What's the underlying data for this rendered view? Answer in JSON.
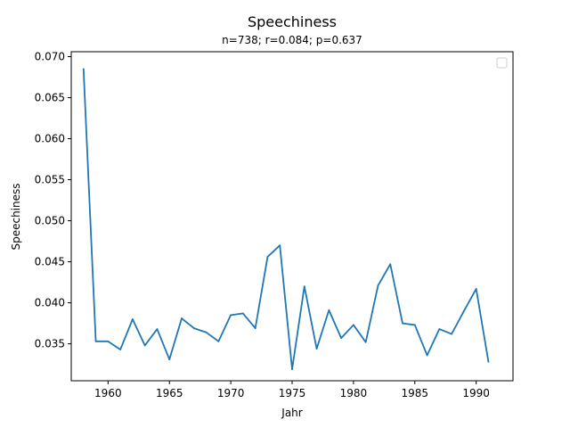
{
  "chart_data": {
    "type": "line",
    "title": "Speechiness",
    "subtitle": "n=738; r=0.084; p=0.637",
    "xlabel": "Jahr",
    "ylabel": "Speechiness",
    "xlim": [
      1957,
      1993
    ],
    "ylim": [
      0.0305,
      0.0706
    ],
    "xticks": [
      1960,
      1965,
      1970,
      1975,
      1980,
      1985,
      1990
    ],
    "yticks": [
      0.035,
      0.04,
      0.045,
      0.05,
      0.055,
      0.06,
      0.065,
      0.07
    ],
    "ytick_labels": [
      "0.035",
      "0.040",
      "0.045",
      "0.050",
      "0.055",
      "0.060",
      "0.065",
      "0.070"
    ],
    "grid": false,
    "legend": "top-right (empty)",
    "series": [
      {
        "color": "#1f77b4",
        "x": [
          1958,
          1959,
          1960,
          1961,
          1962,
          1963,
          1964,
          1965,
          1966,
          1967,
          1968,
          1969,
          1970,
          1971,
          1972,
          1973,
          1974,
          1975,
          1976,
          1977,
          1978,
          1979,
          1980,
          1981,
          1982,
          1983,
          1984,
          1985,
          1986,
          1987,
          1988,
          1989,
          1990,
          1991
        ],
        "y": [
          0.0685,
          0.0353,
          0.0353,
          0.0343,
          0.038,
          0.0348,
          0.0368,
          0.0331,
          0.0381,
          0.0369,
          0.0364,
          0.0353,
          0.0385,
          0.0387,
          0.0369,
          0.0456,
          0.047,
          0.0319,
          0.042,
          0.0344,
          0.0391,
          0.0357,
          0.0373,
          0.0352,
          0.0421,
          0.0447,
          0.0375,
          0.0373,
          0.0336,
          0.0368,
          0.0362,
          0.039,
          0.0417,
          0.0328
        ]
      }
    ]
  }
}
